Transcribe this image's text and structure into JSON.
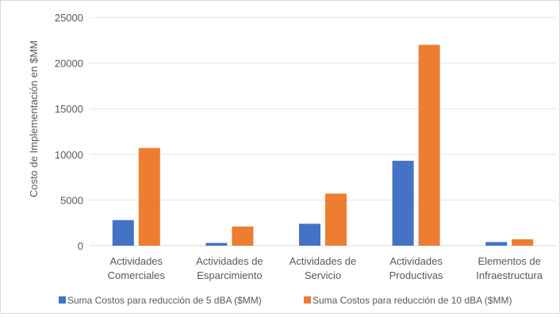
{
  "chart_data": {
    "type": "bar",
    "title": "",
    "xlabel": "",
    "ylabel": "Costo de Implementación en $MM",
    "ylim": [
      0,
      25000
    ],
    "yticks": [
      0,
      5000,
      10000,
      15000,
      20000,
      25000
    ],
    "grid": true,
    "legend_position": "bottom",
    "categories": [
      [
        "Actividades",
        "Comerciales"
      ],
      [
        "Actividades de",
        "Esparcimiento"
      ],
      [
        "Actividades de",
        "Servicio"
      ],
      [
        "Actividades",
        "Productivas"
      ],
      [
        "Elementos de",
        "Infraestructura"
      ]
    ],
    "series": [
      {
        "name": "Suma Costos para reducción de 5  dBA ($MM)",
        "color": "#4472c4",
        "values": [
          2800,
          300,
          2400,
          9300,
          400
        ]
      },
      {
        "name": "Suma Costos para reducción de 10 dBA ($MM)",
        "color": "#ed7d31",
        "values": [
          10700,
          2100,
          5700,
          22000,
          700
        ]
      }
    ]
  }
}
